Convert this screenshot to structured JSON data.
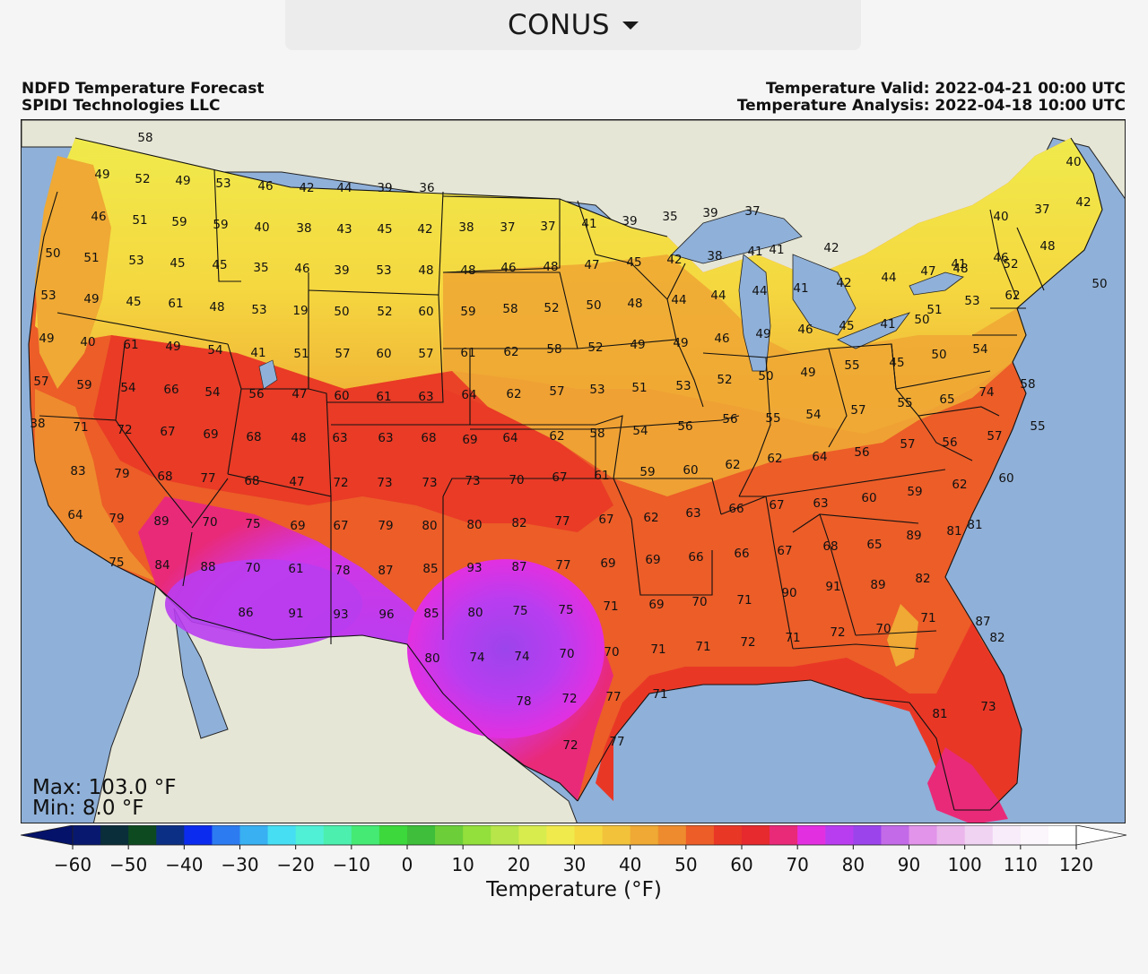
{
  "region_selector": {
    "label": "CONUS"
  },
  "header": {
    "title_line1": "NDFD Temperature Forecast",
    "title_line2": "SPIDI Technologies LLC",
    "valid_line": "Temperature Valid: 2022-04-21 00:00 UTC",
    "analysis_line": "Temperature Analysis: 2022-04-18 10:00 UTC"
  },
  "stats": {
    "max": "Max: 103.0 °F",
    "min": "Min: 8.0 °F"
  },
  "colorbar": {
    "title": "Temperature (°F)",
    "tick_labels": [
      "−60",
      "−50",
      "−40",
      "−30",
      "−20",
      "−10",
      "0",
      "10",
      "20",
      "30",
      "40",
      "50",
      "60",
      "70",
      "80",
      "90",
      "100",
      "110",
      "120"
    ],
    "range": [
      -60,
      120
    ],
    "step": 5,
    "colors": [
      "#08186e",
      "#0a2e3a",
      "#0d4a20",
      "#0c2f86",
      "#0b2cee",
      "#2c7bf0",
      "#38b0f2",
      "#46def2",
      "#4ff0d6",
      "#4cefae",
      "#45ea74",
      "#3cd83c",
      "#3ebe3a",
      "#6ccf3a",
      "#93df3c",
      "#b7e54a",
      "#d8ec4e",
      "#f0ea4c",
      "#f5d840",
      "#f2c33a",
      "#efa934",
      "#ee8b2e",
      "#ec5d28",
      "#e93726",
      "#e62a2e",
      "#e92a78",
      "#e230e0",
      "#b93df0",
      "#9c44ec",
      "#c36ae8",
      "#e194ea",
      "#eab6ec",
      "#f0d2f2",
      "#f8ecfa",
      "#fbf6fb",
      "#ffffff"
    ],
    "under_color": "#04126a",
    "over_color": "#ffffff"
  },
  "legend_colors": {
    "ocean": "#8fb0d8",
    "land_outside": "#e6e6d6",
    "lakes": "#8fb0d8"
  },
  "map_labels": [
    "58",
    "49",
    "52",
    "49",
    "53",
    "46",
    "42",
    "44",
    "39",
    "36",
    "46",
    "51",
    "59",
    "59",
    "40",
    "38",
    "43",
    "45",
    "42",
    "38",
    "37",
    "37",
    "41",
    "39",
    "35",
    "39",
    "37",
    "40",
    "37",
    "40",
    "42",
    "50",
    "51",
    "53",
    "45",
    "45",
    "35",
    "46",
    "39",
    "53",
    "48",
    "48",
    "46",
    "48",
    "47",
    "45",
    "42",
    "38",
    "41",
    "41",
    "42",
    "41",
    "46",
    "48",
    "50",
    "53",
    "49",
    "45",
    "61",
    "48",
    "53",
    "19",
    "50",
    "52",
    "60",
    "59",
    "58",
    "52",
    "50",
    "48",
    "44",
    "44",
    "44",
    "41",
    "42",
    "44",
    "47",
    "48",
    "52",
    "49",
    "40",
    "61",
    "49",
    "54",
    "41",
    "51",
    "57",
    "60",
    "57",
    "61",
    "62",
    "58",
    "52",
    "49",
    "49",
    "46",
    "49",
    "46",
    "45",
    "41",
    "50",
    "51",
    "53",
    "62",
    "57",
    "59",
    "54",
    "66",
    "54",
    "56",
    "47",
    "60",
    "61",
    "63",
    "64",
    "62",
    "57",
    "53",
    "51",
    "53",
    "52",
    "50",
    "49",
    "55",
    "45",
    "50",
    "54",
    "58",
    "38",
    "71",
    "72",
    "67",
    "69",
    "68",
    "48",
    "63",
    "63",
    "68",
    "69",
    "64",
    "62",
    "58",
    "54",
    "56",
    "56",
    "55",
    "54",
    "57",
    "55",
    "65",
    "74",
    "83",
    "79",
    "68",
    "77",
    "68",
    "47",
    "72",
    "73",
    "73",
    "73",
    "70",
    "67",
    "61",
    "59",
    "60",
    "62",
    "62",
    "64",
    "56",
    "57",
    "56",
    "57",
    "55",
    "64",
    "79",
    "89",
    "70",
    "75",
    "69",
    "67",
    "79",
    "80",
    "80",
    "82",
    "77",
    "67",
    "62",
    "63",
    "66",
    "67",
    "63",
    "60",
    "59",
    "62",
    "60",
    "75",
    "84",
    "88",
    "70",
    "61",
    "78",
    "87",
    "85",
    "93",
    "87",
    "77",
    "69",
    "69",
    "66",
    "66",
    "67",
    "68",
    "65",
    "89",
    "81",
    "81",
    "86",
    "91",
    "93",
    "96",
    "85",
    "80",
    "75",
    "75",
    "71",
    "69",
    "70",
    "71",
    "90",
    "91",
    "89",
    "82",
    "80",
    "74",
    "74",
    "70",
    "70",
    "71",
    "71",
    "72",
    "71",
    "72",
    "70",
    "71",
    "87",
    "82",
    "78",
    "72",
    "77",
    "71",
    "81",
    "73",
    "72",
    "77"
  ]
}
